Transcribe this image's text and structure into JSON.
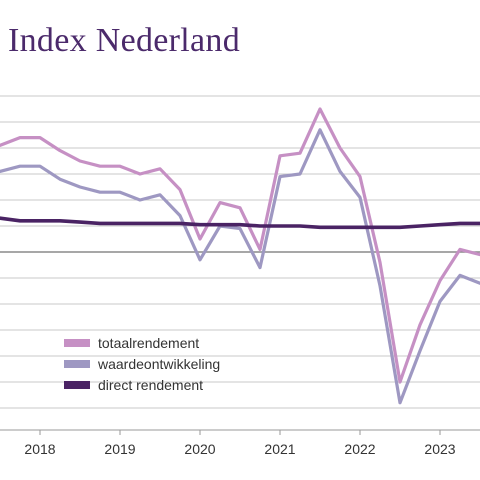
{
  "title": "Index Nederland",
  "colors": {
    "totaalrendement": "#c690c4",
    "waardeontwikkeling": "#9e98c2",
    "direct rendement": "#4a2364",
    "grid": "#c8c8c8",
    "zero_line": "#8a8a8a"
  },
  "chart_data": {
    "type": "line",
    "title": "Index Nederland",
    "xlabel": "",
    "ylabel": "",
    "x_ticks": [
      "2018",
      "2019",
      "2020",
      "2021",
      "2022",
      "2023"
    ],
    "x": [
      2017.75,
      2018.0,
      2018.25,
      2018.5,
      2018.75,
      2019.0,
      2019.25,
      2019.5,
      2019.75,
      2020.0,
      2020.25,
      2020.5,
      2020.75,
      2021.0,
      2021.25,
      2021.5,
      2021.75,
      2022.0,
      2022.25,
      2022.5,
      2022.75,
      2023.0,
      2023.25,
      2023.5,
      2023.75
    ],
    "xlim": [
      2017.75,
      2023.75
    ],
    "ylim": [
      -6,
      6
    ],
    "grid": true,
    "legend_position": "bottom-left",
    "series": [
      {
        "name": "totaalrendement",
        "values": [
          4.1,
          4.4,
          4.4,
          3.9,
          3.5,
          3.3,
          3.3,
          3.0,
          3.2,
          2.4,
          0.5,
          1.9,
          1.7,
          0.1,
          3.7,
          3.8,
          5.5,
          4.0,
          2.9,
          -0.4,
          -5.0,
          -2.8,
          -1.1,
          0.1,
          -0.1
        ]
      },
      {
        "name": "waardeontwikkeling",
        "values": [
          3.1,
          3.3,
          3.3,
          2.8,
          2.5,
          2.3,
          2.3,
          2.0,
          2.2,
          1.4,
          -0.3,
          1.0,
          0.9,
          -0.6,
          2.9,
          3.0,
          4.7,
          3.1,
          2.1,
          -1.3,
          -5.8,
          -3.8,
          -1.9,
          -0.9,
          -1.2
        ]
      },
      {
        "name": "direct rendement",
        "values": [
          1.3,
          1.2,
          1.2,
          1.2,
          1.15,
          1.1,
          1.1,
          1.1,
          1.1,
          1.1,
          1.05,
          1.05,
          1.05,
          1.0,
          1.0,
          1.0,
          0.95,
          0.95,
          0.95,
          0.95,
          0.95,
          1.0,
          1.05,
          1.1,
          1.1
        ]
      }
    ]
  }
}
